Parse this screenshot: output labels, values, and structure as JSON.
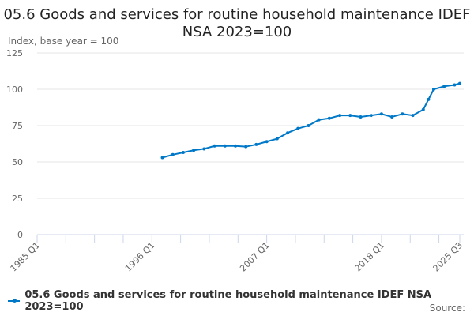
{
  "chart_data": {
    "type": "line",
    "title": "05.6 Goods and services for routine household maintenance IDEF NSA 2023=100",
    "ylabel": "Index, base year = 100",
    "xlabel": "",
    "ylim": [
      0,
      125
    ],
    "yticks": [
      0,
      25,
      50,
      75,
      100,
      125
    ],
    "xlim": [
      "1985 Q1",
      "2025 Q3"
    ],
    "xticks": [
      "1985 Q1",
      "1996 Q1",
      "2007 Q1",
      "2018 Q1",
      "2025 Q3"
    ],
    "grid": true,
    "legend_position": "bottom",
    "color": "#0078c8",
    "series": [
      {
        "name": "05.6 Goods and services for routine household maintenance IDEF NSA 2023=100",
        "x": [
          "1997 Q1",
          "1998 Q1",
          "1999 Q1",
          "2000 Q1",
          "2001 Q1",
          "2002 Q1",
          "2003 Q1",
          "2004 Q1",
          "2005 Q1",
          "2006 Q1",
          "2007 Q1",
          "2008 Q1",
          "2009 Q1",
          "2010 Q1",
          "2011 Q1",
          "2012 Q1",
          "2013 Q1",
          "2014 Q1",
          "2015 Q1",
          "2016 Q1",
          "2017 Q1",
          "2018 Q1",
          "2019 Q1",
          "2020 Q1",
          "2021 Q1",
          "2022 Q1",
          "2022 Q3",
          "2023 Q1",
          "2024 Q1",
          "2025 Q1",
          "2025 Q3"
        ],
        "values": [
          53,
          55,
          56.5,
          58,
          59,
          61,
          61,
          61,
          60.5,
          62,
          64,
          66,
          70,
          73,
          75,
          79,
          80,
          82,
          82,
          81,
          82,
          83,
          81,
          83,
          82,
          86,
          93,
          100,
          102,
          103,
          104
        ]
      }
    ],
    "source_label": "Source:"
  }
}
